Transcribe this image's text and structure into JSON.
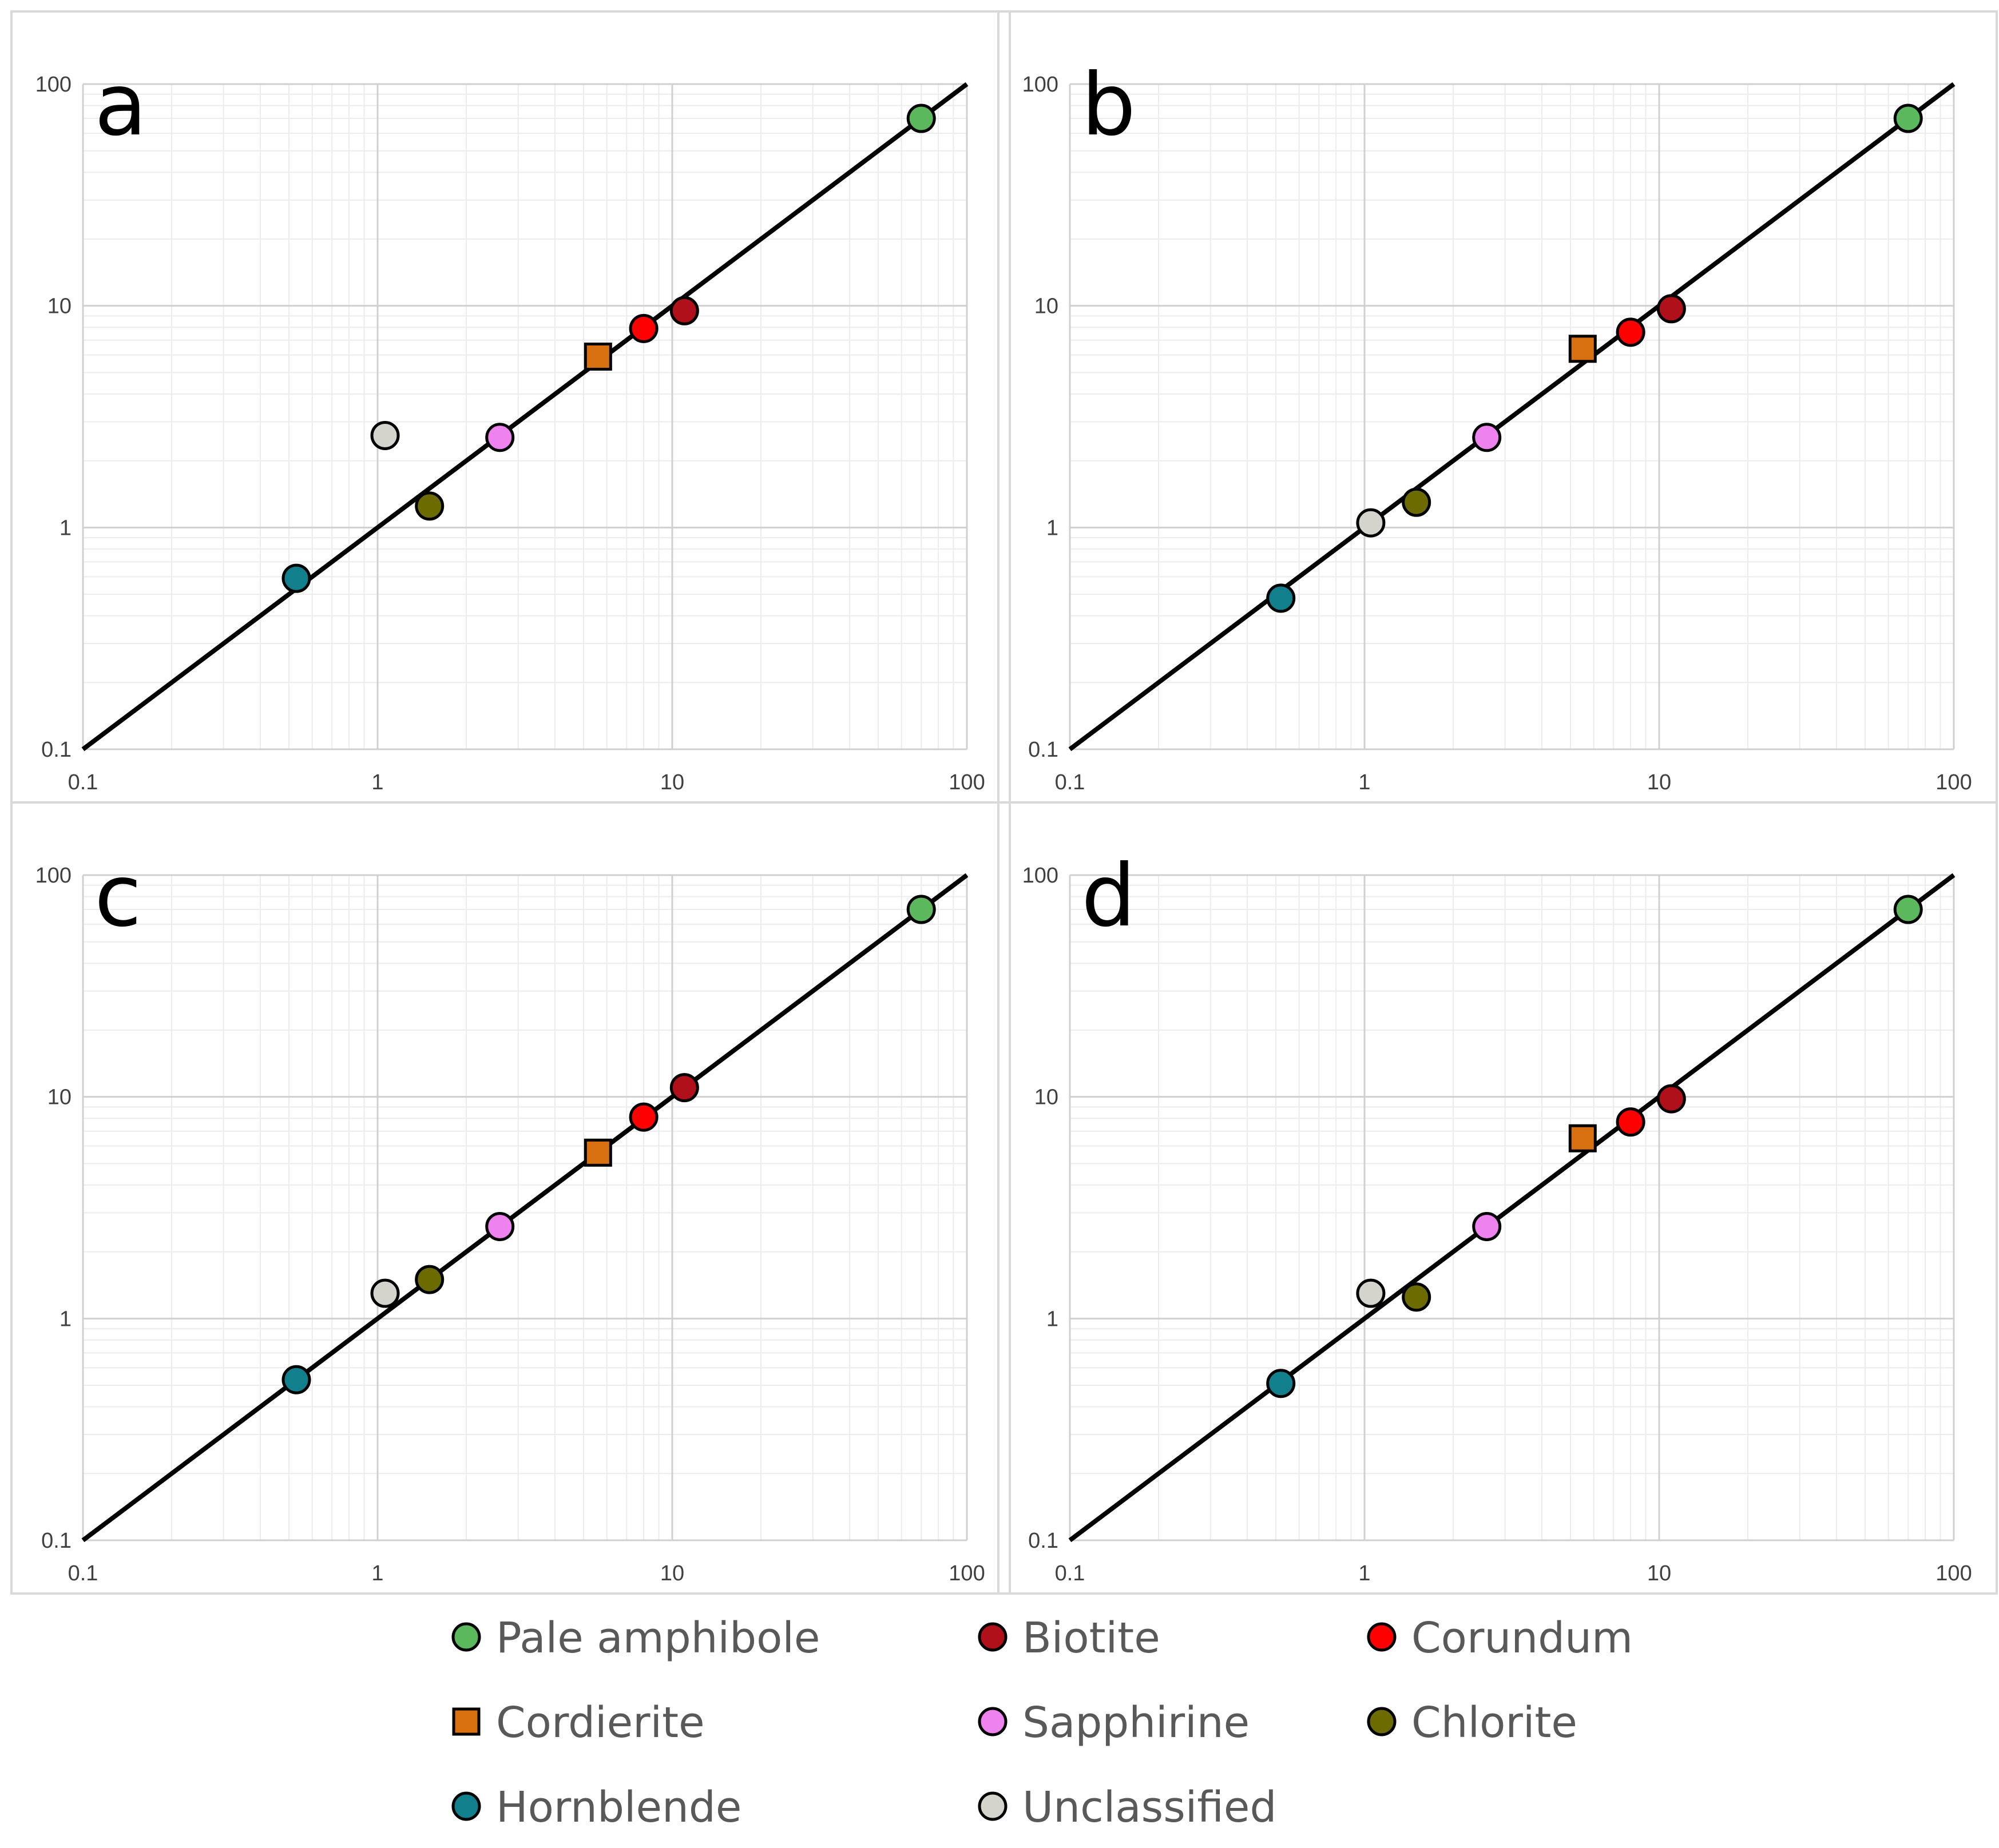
{
  "chart_data": {
    "type": "scatter",
    "scale": "log-log",
    "xlim": [
      0.1,
      100
    ],
    "ylim": [
      0.1,
      100
    ],
    "tick_values": [
      0.1,
      1,
      10,
      100
    ],
    "tick_labels": [
      "0.1",
      "1",
      "10",
      "100"
    ],
    "reference_line": {
      "from": [
        0.1,
        0.1
      ],
      "to": [
        100,
        100
      ]
    },
    "categories": [
      {
        "key": "pale_amphibole",
        "name": "Pale amphibole",
        "marker": "circle",
        "color": "#5cb85c"
      },
      {
        "key": "biotite",
        "name": "Biotite",
        "marker": "circle",
        "color": "#b0101a"
      },
      {
        "key": "corundum",
        "name": "Corundum",
        "marker": "circle",
        "color": "#ff0000"
      },
      {
        "key": "cordierite",
        "name": "Cordierite",
        "marker": "square",
        "color": "#d9700f"
      },
      {
        "key": "sapphirine",
        "name": "Sapphirine",
        "marker": "circle",
        "color": "#ee82ee"
      },
      {
        "key": "chlorite",
        "name": "Chlorite",
        "marker": "circle",
        "color": "#6b6b00"
      },
      {
        "key": "hornblende",
        "name": "Hornblende",
        "marker": "circle",
        "color": "#127f8c"
      },
      {
        "key": "unclassified",
        "name": "Unclassified",
        "marker": "circle",
        "color": "#d4d4cc"
      }
    ],
    "panels": [
      {
        "label": "a",
        "points": [
          {
            "cat": "pale_amphibole",
            "x": 70,
            "y": 70
          },
          {
            "cat": "biotite",
            "x": 11,
            "y": 9.5
          },
          {
            "cat": "corundum",
            "x": 8,
            "y": 7.9
          },
          {
            "cat": "cordierite",
            "x": 5.6,
            "y": 5.9
          },
          {
            "cat": "sapphirine",
            "x": 2.6,
            "y": 2.55
          },
          {
            "cat": "chlorite",
            "x": 1.5,
            "y": 1.25
          },
          {
            "cat": "hornblende",
            "x": 0.53,
            "y": 0.59
          },
          {
            "cat": "unclassified",
            "x": 1.06,
            "y": 2.6
          }
        ]
      },
      {
        "label": "b",
        "points": [
          {
            "cat": "pale_amphibole",
            "x": 70,
            "y": 70
          },
          {
            "cat": "biotite",
            "x": 11,
            "y": 9.7
          },
          {
            "cat": "corundum",
            "x": 8,
            "y": 7.6
          },
          {
            "cat": "cordierite",
            "x": 5.5,
            "y": 6.4
          },
          {
            "cat": "sapphirine",
            "x": 2.6,
            "y": 2.55
          },
          {
            "cat": "chlorite",
            "x": 1.5,
            "y": 1.3
          },
          {
            "cat": "hornblende",
            "x": 0.52,
            "y": 0.48
          },
          {
            "cat": "unclassified",
            "x": 1.05,
            "y": 1.05
          }
        ]
      },
      {
        "label": "c",
        "points": [
          {
            "cat": "pale_amphibole",
            "x": 70,
            "y": 70
          },
          {
            "cat": "biotite",
            "x": 11,
            "y": 11
          },
          {
            "cat": "corundum",
            "x": 8,
            "y": 8.1
          },
          {
            "cat": "cordierite",
            "x": 5.6,
            "y": 5.6
          },
          {
            "cat": "sapphirine",
            "x": 2.6,
            "y": 2.6
          },
          {
            "cat": "chlorite",
            "x": 1.5,
            "y": 1.5
          },
          {
            "cat": "hornblende",
            "x": 0.53,
            "y": 0.53
          },
          {
            "cat": "unclassified",
            "x": 1.06,
            "y": 1.3
          }
        ]
      },
      {
        "label": "d",
        "points": [
          {
            "cat": "pale_amphibole",
            "x": 70,
            "y": 70
          },
          {
            "cat": "biotite",
            "x": 11,
            "y": 9.8
          },
          {
            "cat": "corundum",
            "x": 8,
            "y": 7.7
          },
          {
            "cat": "cordierite",
            "x": 5.5,
            "y": 6.5
          },
          {
            "cat": "sapphirine",
            "x": 2.6,
            "y": 2.6
          },
          {
            "cat": "chlorite",
            "x": 1.5,
            "y": 1.25
          },
          {
            "cat": "hornblende",
            "x": 0.52,
            "y": 0.51
          },
          {
            "cat": "unclassified",
            "x": 1.05,
            "y": 1.3
          }
        ]
      }
    ],
    "legend": {
      "placement": "bottom",
      "columns": [
        [
          "pale_amphibole",
          "cordierite",
          "hornblende"
        ],
        [
          "biotite",
          "sapphirine",
          "unclassified"
        ],
        [
          "corundum",
          "chlorite"
        ]
      ]
    }
  }
}
